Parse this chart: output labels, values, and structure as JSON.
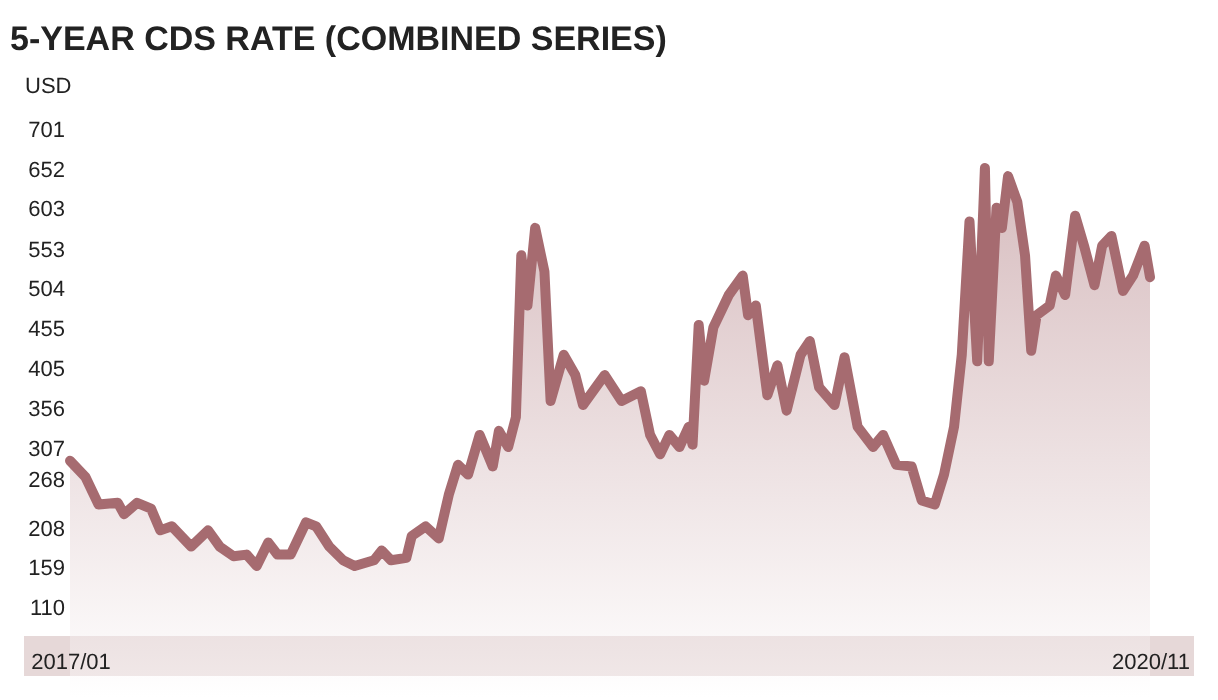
{
  "chart_data": {
    "type": "area",
    "title": "5-YEAR CDS RATE (COMBINED SERIES)",
    "ylabel": "USD",
    "x": [
      "2017-01-01",
      "2017-01-21",
      "2017-02-07",
      "2017-03-04",
      "2017-03-12",
      "2017-03-29",
      "2017-04-16",
      "2017-04-28",
      "2017-05-13",
      "2017-06-07",
      "2017-06-29",
      "2017-07-14",
      "2017-08-01",
      "2017-08-18",
      "2017-08-31",
      "2017-09-15",
      "2017-09-27",
      "2017-10-14",
      "2017-11-03",
      "2017-11-16",
      "2017-12-03",
      "2017-12-21",
      "2018-01-05",
      "2018-01-30",
      "2018-02-09",
      "2018-02-21",
      "2018-03-13",
      "2018-03-20",
      "2018-04-07",
      "2018-04-24",
      "2018-05-07",
      "2018-05-19",
      "2018-06-01",
      "2018-06-16",
      "2018-07-03",
      "2018-07-11",
      "2018-07-23",
      "2018-08-02",
      "2018-08-09",
      "2018-08-17",
      "2018-08-27",
      "2018-09-08",
      "2018-09-16",
      "2018-10-03",
      "2018-10-18",
      "2018-10-28",
      "2018-11-25",
      "2018-12-17",
      "2019-01-11",
      "2019-01-23",
      "2019-02-05",
      "2019-02-17",
      "2019-03-02",
      "2019-03-14",
      "2019-03-19",
      "2019-03-27",
      "2019-04-03",
      "2019-04-15",
      "2019-05-05",
      "2019-05-23",
      "2019-05-30",
      "2019-06-09",
      "2019-06-24",
      "2019-07-07",
      "2019-07-19",
      "2019-08-06",
      "2019-08-18",
      "2019-08-30",
      "2019-09-19",
      "2019-10-02",
      "2019-10-19",
      "2019-11-08",
      "2019-11-21",
      "2019-12-08",
      "2019-12-28",
      "2020-01-10",
      "2020-01-27",
      "2020-02-08",
      "2020-02-21",
      "2020-03-02",
      "2020-03-12",
      "2020-03-22",
      "2020-04-01",
      "2020-04-06",
      "2020-04-16",
      "2020-04-23",
      "2020-05-01",
      "2020-05-13",
      "2020-05-23",
      "2020-05-31",
      "2020-06-07",
      "2020-06-24",
      "2020-07-02",
      "2020-07-14",
      "2020-07-27",
      "2020-08-08",
      "2020-08-21",
      "2020-08-31",
      "2020-09-12",
      "2020-09-27",
      "2020-10-10",
      "2020-10-25",
      "2020-11-01"
    ],
    "series": [
      {
        "color": "#a66b70",
        "values": [
          292,
          272,
          238,
          240,
          226,
          240,
          233,
          206,
          211,
          186,
          206,
          186,
          174,
          176,
          162,
          191,
          176,
          176,
          216,
          211,
          186,
          169,
          162,
          169,
          181,
          169,
          172,
          199,
          211,
          196,
          250,
          287,
          275,
          324,
          285,
          329,
          309,
          346,
          546,
          484,
          580,
          526,
          366,
          423,
          398,
          361,
          398,
          366,
          378,
          324,
          300,
          324,
          309,
          334,
          312,
          460,
          391,
          457,
          497,
          521,
          472,
          484,
          373,
          410,
          354,
          423,
          440,
          383,
          361,
          420,
          334,
          309,
          324,
          287,
          285,
          243,
          238,
          275,
          334,
          423,
          588,
          415,
          654,
          415,
          605,
          580,
          644,
          612,
          546,
          428,
          472,
          484,
          521,
          497,
          595,
          556,
          509,
          558,
          570,
          502,
          521,
          558,
          519
        ]
      }
    ],
    "xlim": [
      "2017-01-01",
      "2020-11-01"
    ],
    "xticks": [
      {
        "value": "2017-01-01",
        "label": "2017/01"
      },
      {
        "value": "2020-11-01",
        "label": "2020/11"
      }
    ],
    "ylim": [
      110,
      701
    ],
    "yticks": [
      110,
      159,
      208,
      268,
      307,
      356,
      405,
      455,
      504,
      553,
      603,
      652,
      701
    ]
  }
}
